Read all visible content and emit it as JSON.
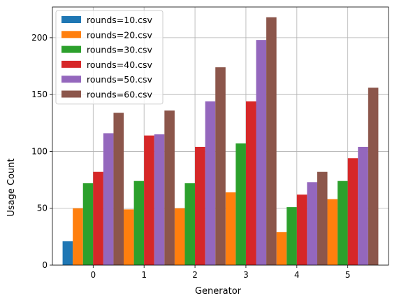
{
  "chart_data": {
    "type": "bar",
    "xlabel": "Generator",
    "ylabel": "Usage Count",
    "categories": [
      "0",
      "1",
      "2",
      "3",
      "4",
      "5"
    ],
    "ylim": [
      0,
      227
    ],
    "yticks": [
      0,
      50,
      100,
      150,
      200
    ],
    "grid": true,
    "legend_position": "top-left",
    "series": [
      {
        "name": "rounds=10.csv",
        "color": "#1f77b4",
        "values": [
          21,
          0,
          0,
          0,
          0,
          0
        ]
      },
      {
        "name": "rounds=20.csv",
        "color": "#ff7f0e",
        "values": [
          50,
          49,
          50,
          64,
          29,
          58
        ]
      },
      {
        "name": "rounds=30.csv",
        "color": "#2ca02c",
        "values": [
          72,
          74,
          72,
          107,
          51,
          74
        ]
      },
      {
        "name": "rounds=40.csv",
        "color": "#d62728",
        "values": [
          82,
          114,
          104,
          144,
          62,
          94
        ]
      },
      {
        "name": "rounds=50.csv",
        "color": "#9467bd",
        "values": [
          116,
          115,
          144,
          198,
          73,
          104
        ]
      },
      {
        "name": "rounds=60.csv",
        "color": "#8c564b",
        "values": [
          134,
          136,
          174,
          218,
          82,
          156
        ]
      }
    ]
  }
}
